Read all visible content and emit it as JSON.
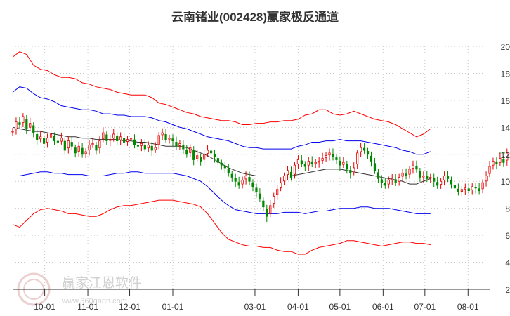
{
  "chart_data": {
    "type": "line",
    "title": "云南锗业(002428)赢家极反通道",
    "ylim": [
      2,
      20
    ],
    "y_ticks": [
      "20",
      "18",
      "16",
      "14",
      "12",
      "10",
      "8",
      "6",
      "4",
      "2"
    ],
    "x_ticks": [
      {
        "label": "10-01",
        "day": 0
      },
      {
        "label": "11-01",
        "day": 31
      },
      {
        "label": "12-01",
        "day": 61
      },
      {
        "label": "01-01",
        "day": 92
      },
      {
        "label": "03-01",
        "day": 151
      },
      {
        "label": "04-01",
        "day": 182
      },
      {
        "label": "05-01",
        "day": 212
      },
      {
        "label": "06-01",
        "day": 243
      },
      {
        "label": "07-01",
        "day": 273
      },
      {
        "label": "08-01",
        "day": 304
      }
    ],
    "x_range_days": [
      -23,
      320
    ],
    "last_price": 12.1,
    "colors": {
      "up": "#e60000",
      "down": "#008800",
      "outer": "#ff0000",
      "inner": "#0000ee",
      "mid": "#333333",
      "ref": "#009900"
    },
    "series": [
      {
        "role": "outer-upper",
        "day": [
          -23,
          -18,
          -13,
          -8,
          -3,
          2,
          7,
          12,
          17,
          22,
          27,
          32,
          37,
          42,
          47,
          52,
          57,
          62,
          67,
          72,
          77,
          82,
          87,
          92,
          97,
          102,
          107,
          112,
          117,
          122,
          127,
          132,
          137,
          142,
          147,
          152,
          157,
          162,
          167,
          172,
          177,
          182,
          187,
          192,
          197,
          202,
          207,
          212,
          217,
          222,
          227,
          232,
          237,
          242,
          247,
          252,
          257,
          262,
          267,
          272,
          277
        ],
        "values": [
          19.2,
          19.6,
          19.4,
          18.6,
          18.3,
          18.2,
          17.9,
          17.7,
          17.7,
          17.6,
          17.3,
          17.2,
          17.0,
          16.9,
          16.8,
          16.6,
          16.5,
          16.4,
          16.4,
          16.4,
          16.2,
          15.8,
          15.7,
          15.5,
          15.3,
          15.1,
          15.0,
          14.8,
          14.7,
          14.6,
          14.5,
          14.5,
          14.4,
          14.2,
          14.2,
          14.3,
          14.3,
          14.4,
          14.4,
          14.5,
          14.5,
          14.6,
          14.9,
          15.0,
          15.3,
          15.3,
          15.0,
          14.9,
          15.0,
          15.2,
          15.0,
          14.8,
          14.6,
          14.5,
          14.4,
          14.2,
          13.9,
          13.6,
          13.3,
          13.5,
          13.9
        ]
      },
      {
        "role": "inner-upper",
        "day": [
          -23,
          -18,
          -13,
          -8,
          -3,
          2,
          7,
          12,
          17,
          22,
          27,
          32,
          37,
          42,
          47,
          52,
          57,
          62,
          67,
          72,
          77,
          82,
          87,
          92,
          97,
          102,
          107,
          112,
          117,
          122,
          127,
          132,
          137,
          142,
          147,
          152,
          157,
          162,
          167,
          172,
          177,
          182,
          187,
          192,
          197,
          202,
          207,
          212,
          217,
          222,
          227,
          232,
          237,
          242,
          247,
          252,
          257,
          262,
          267,
          272,
          277
        ],
        "values": [
          16.6,
          17.0,
          16.9,
          16.5,
          16.2,
          16.1,
          15.9,
          15.6,
          15.5,
          15.4,
          15.3,
          15.3,
          15.2,
          15.0,
          15.0,
          14.9,
          14.9,
          14.8,
          14.8,
          14.8,
          14.7,
          14.5,
          14.4,
          14.2,
          14.0,
          13.9,
          13.7,
          13.5,
          13.3,
          13.2,
          13.1,
          13.0,
          12.8,
          12.6,
          12.5,
          12.5,
          12.4,
          12.4,
          12.4,
          12.4,
          12.4,
          12.6,
          12.7,
          12.9,
          12.9,
          13.0,
          13.0,
          13.1,
          13.0,
          13.0,
          13.0,
          12.9,
          12.8,
          12.7,
          12.6,
          12.5,
          12.3,
          12.2,
          12.0,
          12.0,
          12.2
        ]
      },
      {
        "role": "middle",
        "day": [
          -23,
          -18,
          -13,
          -8,
          -3,
          2,
          7,
          12,
          17,
          22,
          27,
          32,
          37,
          42,
          47,
          52,
          57,
          62,
          67,
          72,
          77,
          82,
          87,
          92,
          97,
          102,
          107,
          112,
          117,
          122,
          127,
          132,
          137,
          142,
          147,
          152,
          157,
          162,
          167,
          172,
          177,
          182,
          187,
          192,
          197,
          202,
          207,
          212,
          217,
          222,
          227,
          232,
          237,
          242,
          247,
          252,
          257,
          262,
          267,
          272,
          277
        ],
        "values": [
          14.0,
          13.9,
          13.8,
          13.7,
          13.7,
          13.6,
          13.5,
          13.4,
          13.3,
          13.3,
          13.2,
          13.2,
          13.1,
          13.1,
          13.1,
          13.1,
          13.0,
          13.0,
          12.9,
          12.9,
          12.8,
          12.7,
          12.6,
          12.6,
          12.6,
          12.5,
          12.3,
          12.1,
          11.9,
          11.6,
          11.3,
          11.0,
          10.8,
          10.6,
          10.5,
          10.4,
          10.4,
          10.4,
          10.4,
          10.4,
          10.4,
          10.5,
          10.6,
          10.7,
          10.8,
          10.9,
          10.9,
          10.9,
          10.8,
          10.7,
          10.6,
          10.5,
          10.4,
          10.3,
          10.2,
          10.1,
          10.0,
          9.8,
          9.8,
          10.0,
          10.2
        ]
      },
      {
        "role": "inner-lower",
        "day": [
          -23,
          -18,
          -13,
          -8,
          -3,
          2,
          7,
          12,
          17,
          22,
          27,
          32,
          37,
          42,
          47,
          52,
          57,
          62,
          67,
          72,
          77,
          82,
          87,
          92,
          97,
          102,
          107,
          112,
          117,
          122,
          127,
          132,
          137,
          142,
          147,
          152,
          157,
          162,
          167,
          172,
          177,
          182,
          187,
          192,
          197,
          202,
          207,
          212,
          217,
          222,
          227,
          232,
          237,
          242,
          247,
          252,
          257,
          262,
          267,
          272,
          277
        ],
        "values": [
          10.4,
          10.4,
          10.5,
          10.6,
          10.7,
          10.7,
          10.6,
          10.6,
          10.5,
          10.5,
          10.5,
          10.4,
          10.4,
          10.4,
          10.5,
          10.6,
          10.6,
          10.7,
          10.7,
          10.6,
          10.6,
          10.6,
          10.6,
          10.6,
          10.5,
          10.4,
          10.2,
          10.0,
          9.6,
          9.1,
          8.6,
          8.2,
          7.9,
          7.8,
          7.7,
          7.6,
          7.6,
          7.6,
          7.6,
          7.7,
          7.7,
          7.7,
          7.6,
          7.7,
          7.8,
          7.8,
          7.9,
          8.0,
          8.0,
          8.0,
          8.1,
          8.1,
          8.0,
          8.0,
          8.0,
          7.9,
          7.8,
          7.7,
          7.6,
          7.6,
          7.6
        ]
      },
      {
        "role": "outer-lower",
        "day": [
          -23,
          -18,
          -13,
          -8,
          -3,
          2,
          7,
          12,
          17,
          22,
          27,
          32,
          37,
          42,
          47,
          52,
          57,
          62,
          67,
          72,
          77,
          82,
          87,
          92,
          97,
          102,
          107,
          112,
          117,
          122,
          127,
          132,
          137,
          142,
          147,
          152,
          157,
          162,
          167,
          172,
          177,
          182,
          187,
          192,
          197,
          202,
          207,
          212,
          217,
          222,
          227,
          232,
          237,
          242,
          247,
          252,
          257,
          262,
          267,
          272,
          277
        ],
        "values": [
          6.8,
          6.6,
          7.1,
          7.6,
          7.9,
          8.0,
          7.9,
          7.8,
          7.6,
          7.6,
          7.5,
          7.4,
          7.4,
          7.6,
          7.9,
          8.1,
          8.2,
          8.2,
          8.3,
          8.4,
          8.5,
          8.6,
          8.6,
          8.6,
          8.5,
          8.4,
          8.3,
          8.1,
          7.6,
          6.9,
          6.2,
          5.7,
          5.5,
          5.3,
          5.2,
          5.2,
          5.1,
          5.1,
          4.9,
          4.8,
          4.8,
          4.6,
          4.6,
          4.9,
          5.1,
          5.2,
          5.3,
          5.4,
          5.6,
          5.6,
          5.5,
          5.4,
          5.3,
          5.2,
          5.3,
          5.4,
          5.5,
          5.5,
          5.4,
          5.4,
          5.3
        ]
      }
    ],
    "candles": {
      "start_day": -23,
      "step_days": 2.5,
      "closes": [
        13.7,
        14.4,
        14.2,
        14.8,
        13.9,
        14.3,
        13.6,
        13.1,
        13.3,
        12.8,
        13.2,
        13.5,
        13.0,
        12.9,
        13.2,
        12.3,
        13.0,
        12.6,
        12.1,
        12.6,
        12.0,
        12.2,
        12.7,
        12.8,
        12.3,
        13.0,
        13.6,
        13.0,
        13.1,
        13.5,
        13.0,
        13.3,
        12.9,
        13.1,
        13.2,
        12.7,
        12.6,
        12.8,
        12.4,
        12.7,
        12.3,
        12.5,
        13.4,
        13.6,
        13.1,
        13.2,
        13.0,
        12.6,
        12.8,
        12.4,
        12.0,
        12.5,
        11.6,
        11.9,
        11.5,
        12.0,
        12.3,
        12.1,
        11.8,
        11.4,
        11.2,
        11.0,
        10.6,
        10.3,
        10.0,
        9.7,
        10.1,
        10.4,
        10.0,
        9.6,
        9.2,
        8.7,
        8.1,
        7.4,
        8.2,
        8.9,
        9.4,
        9.9,
        10.4,
        10.8,
        10.3,
        11.2,
        11.6,
        11.3,
        11.1,
        11.5,
        11.3,
        11.4,
        11.5,
        11.7,
        11.9,
        12.1,
        11.8,
        11.6,
        11.2,
        11.4,
        10.9,
        10.6,
        11.0,
        12.1,
        12.5,
        12.3,
        12.0,
        11.5,
        10.8,
        10.2,
        9.9,
        9.7,
        10.1,
        10.2,
        9.9,
        10.3,
        10.6,
        10.4,
        10.9,
        11.2,
        10.9,
        10.3,
        10.4,
        10.2,
        10.3,
        10.0,
        9.7,
        10.0,
        10.4,
        10.2,
        9.8,
        9.5,
        9.2,
        9.4,
        9.5,
        9.3,
        9.6,
        9.5,
        9.3,
        9.9,
        10.4,
        11.1,
        11.5,
        11.3,
        11.7,
        11.4,
        12.1
      ]
    }
  }
}
